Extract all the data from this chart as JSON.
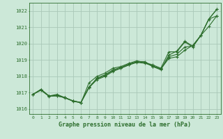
{
  "xlabel": "Graphe pression niveau de la mer (hPa)",
  "background_color": "#cce8d8",
  "plot_bg_color": "#cce8d8",
  "grid_color": "#aac8b8",
  "line_color": "#2d6e2d",
  "ylim": [
    1015.7,
    1022.5
  ],
  "xlim": [
    -0.5,
    23.5
  ],
  "yticks": [
    1016,
    1017,
    1018,
    1019,
    1020,
    1021,
    1022
  ],
  "xticks": [
    0,
    1,
    2,
    3,
    4,
    5,
    6,
    7,
    8,
    9,
    10,
    11,
    12,
    13,
    14,
    15,
    16,
    17,
    18,
    19,
    20,
    21,
    22,
    23
  ],
  "series": [
    [
      1016.9,
      1017.2,
      1016.8,
      1016.85,
      1016.7,
      1016.5,
      1016.4,
      1017.35,
      1017.85,
      1018.05,
      1018.35,
      1018.5,
      1018.7,
      1018.85,
      1018.8,
      1018.65,
      1018.45,
      1019.2,
      1019.35,
      1019.8,
      1019.85,
      1020.5,
      1021.5,
      1022.1
    ],
    [
      1016.9,
      1017.2,
      1016.8,
      1016.8,
      1016.7,
      1016.5,
      1016.4,
      1017.3,
      1017.9,
      1018.1,
      1018.4,
      1018.55,
      1018.75,
      1018.9,
      1018.9,
      1018.6,
      1018.45,
      1019.1,
      1019.2,
      1019.6,
      1019.9,
      1020.5,
      1021.05,
      1021.7
    ],
    [
      1016.9,
      1017.2,
      1016.8,
      1016.9,
      1016.7,
      1016.5,
      1016.4,
      1017.3,
      1017.8,
      1018.0,
      1018.3,
      1018.5,
      1018.7,
      1018.9,
      1018.85,
      1018.7,
      1018.5,
      1019.5,
      1019.5,
      1020.1,
      1019.8,
      1020.5,
      1021.5,
      1021.7
    ],
    [
      1016.9,
      1017.15,
      1016.78,
      1016.82,
      1016.68,
      1016.48,
      1016.38,
      1017.6,
      1018.0,
      1018.2,
      1018.5,
      1018.6,
      1018.8,
      1018.95,
      1018.85,
      1018.6,
      1018.4,
      1019.3,
      1019.55,
      1020.15,
      1019.85,
      1020.5,
      1021.5,
      1022.1
    ]
  ]
}
